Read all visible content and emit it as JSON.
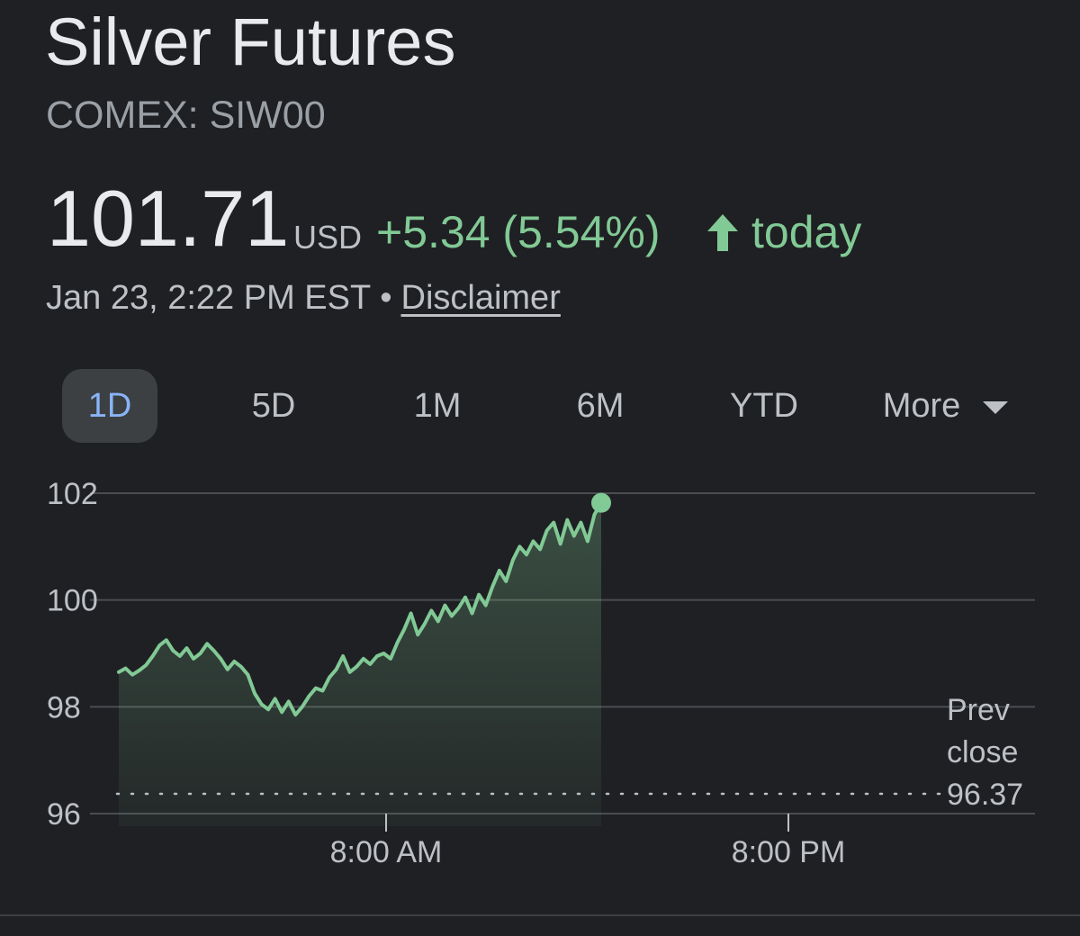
{
  "header": {
    "title": "Silver Futures",
    "exchange": "COMEX: SIW00"
  },
  "quote": {
    "price": "101.71",
    "currency": "USD",
    "change": "+5.34 (5.54%)",
    "period": "today",
    "timestamp": "Jan 23, 2:22 PM EST",
    "separator": "•",
    "disclaimer": "Disclaimer",
    "up_color": "#81c995",
    "direction_icon": "arrow-up-icon"
  },
  "tabs": [
    {
      "label": "1D",
      "active": true
    },
    {
      "label": "5D",
      "active": false
    },
    {
      "label": "1M",
      "active": false
    },
    {
      "label": "6M",
      "active": false
    },
    {
      "label": "YTD",
      "active": false
    },
    {
      "label": "More",
      "active": false
    }
  ],
  "more_icon": "caret-down-icon",
  "chart_data": {
    "type": "area",
    "y_ticks": [
      "102",
      "100",
      "98",
      "96"
    ],
    "x_ticks": [
      "8:00 AM",
      "8:00 PM"
    ],
    "ylim": [
      96,
      102
    ],
    "prev_close": {
      "label_line1": "Prev",
      "label_line2": "close",
      "value": 96.37
    },
    "line_color": "#81c995",
    "series": [
      {
        "values": [
          98.65,
          98.72,
          98.6,
          98.68,
          98.78,
          98.95,
          99.15,
          99.25,
          99.05,
          98.95,
          99.1,
          98.9,
          99.0,
          99.18,
          99.05,
          98.9,
          98.7,
          98.85,
          98.75,
          98.6,
          98.25,
          98.05,
          97.95,
          98.15,
          97.9,
          98.1,
          97.85,
          98.0,
          98.2,
          98.35,
          98.3,
          98.55,
          98.7,
          98.95,
          98.65,
          98.75,
          98.9,
          98.8,
          98.95,
          99.0,
          98.9,
          99.2,
          99.45,
          99.75,
          99.35,
          99.55,
          99.8,
          99.6,
          99.9,
          99.7,
          99.85,
          100.05,
          99.75,
          100.1,
          99.9,
          100.25,
          100.55,
          100.35,
          100.75,
          101.0,
          100.85,
          101.1,
          100.95,
          101.3,
          101.45,
          101.05,
          101.5,
          101.2,
          101.45,
          101.1,
          101.6,
          101.82
        ]
      }
    ]
  }
}
